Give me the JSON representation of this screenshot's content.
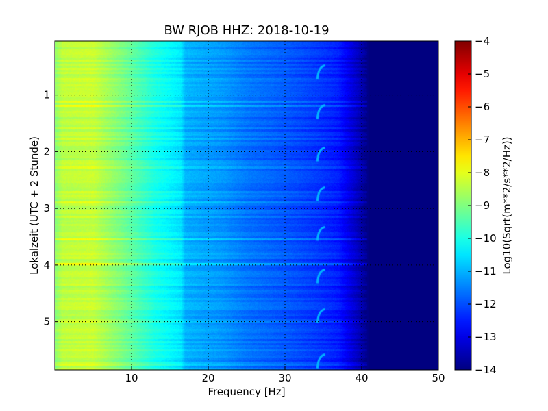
{
  "chart_data": {
    "type": "heatmap",
    "title": "BW RJOB HHZ: 2018-10-19",
    "xlabel": "Frequency [Hz]",
    "ylabel": "Lokalzeit (UTC + 2 Stunde)",
    "xlim": [
      0,
      50
    ],
    "ylim": [
      5.85,
      0.05
    ],
    "y_inverted": true,
    "x_ticks": [
      10,
      20,
      30,
      40,
      50
    ],
    "y_ticks": [
      1,
      2,
      3,
      4,
      5
    ],
    "grid": true,
    "colormap": "jet",
    "colorbar": {
      "label": "Log10(Sqrt(m**2/s**2/Hz))",
      "range": [
        -14,
        -4
      ],
      "ticks": [
        -4,
        -5,
        -6,
        -7,
        -8,
        -9,
        -10,
        -11,
        -12,
        -13,
        -14
      ]
    },
    "frequency_profile": {
      "frequency_hz": [
        0,
        1,
        5,
        9,
        13,
        16.5,
        17,
        22,
        25,
        30,
        34,
        37,
        39,
        41,
        42,
        50
      ],
      "log10_amplitude": [
        -8.9,
        -8.4,
        -8.3,
        -9.1,
        -10.0,
        -10.5,
        -11.0,
        -11.3,
        -11.6,
        -11.9,
        -12.2,
        -12.5,
        -13.2,
        -14,
        -14,
        -14
      ]
    },
    "event_bursts": {
      "frequency_hz": 34.5,
      "log10_amplitude": -11,
      "times_h": [
        0.6,
        1.3,
        2.05,
        2.75,
        3.45,
        4.2,
        4.9,
        5.7
      ]
    }
  }
}
